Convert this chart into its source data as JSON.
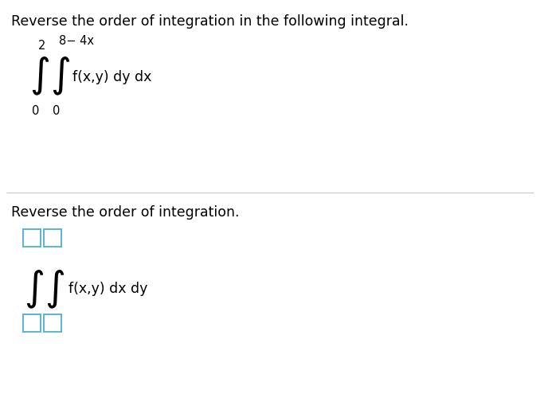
{
  "bg_color": "#ffffff",
  "title1": "Reverse the order of integration in the following integral.",
  "title2": "Reverse the order of integration.",
  "upper_limit1": "2",
  "upper_limit2": "8− 4x",
  "lower_limit1": "0",
  "lower_limit2": "0",
  "integrand1": "f(x,y) dy dx",
  "integrand2": "f(x,y) dx dy",
  "text_color": "#000000",
  "box_color": "#5ab4cf",
  "title_fontsize": 12.5,
  "integral_fontsize": 36,
  "label_fontsize": 12.5,
  "limit_fontsize": 10.5
}
